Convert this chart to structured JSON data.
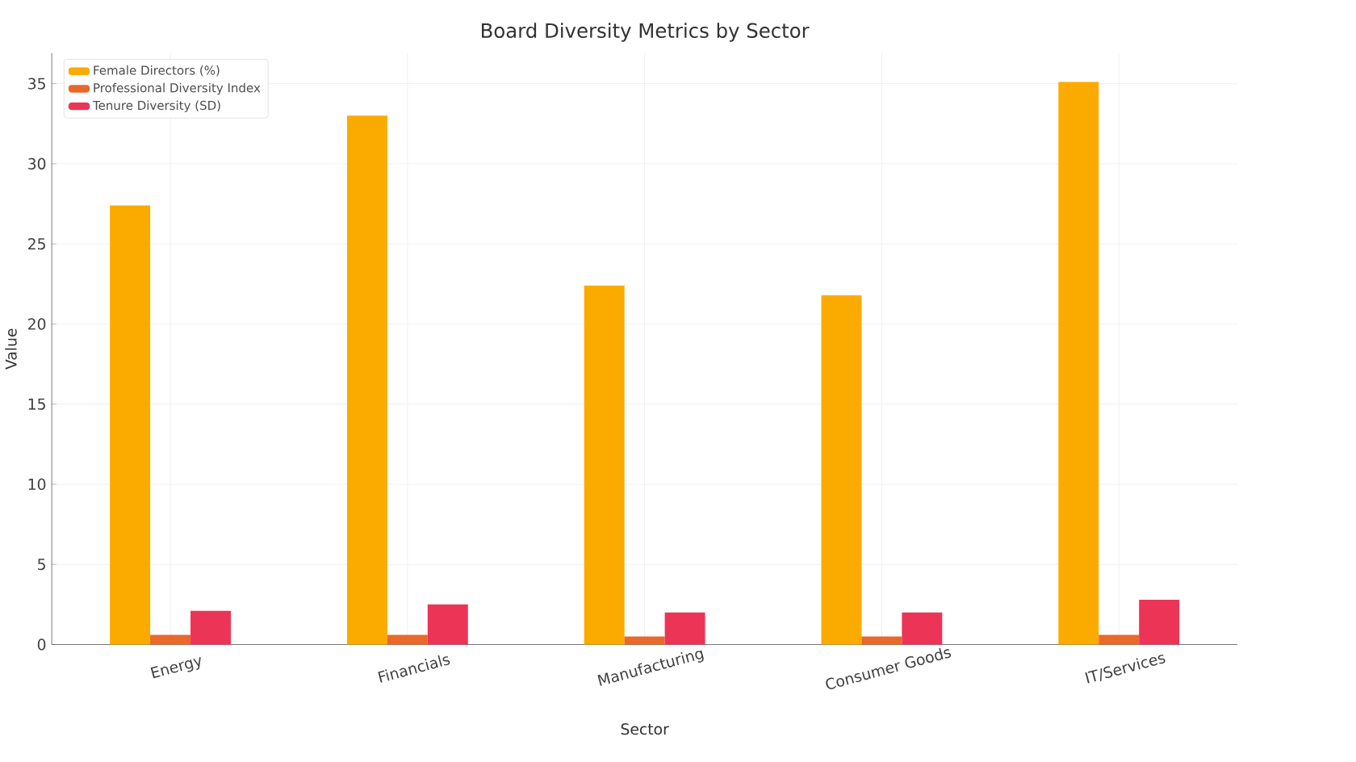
{
  "chart_data": {
    "type": "bar",
    "title": "Board Diversity Metrics by Sector",
    "xlabel": "Sector",
    "ylabel": "Value",
    "categories": [
      "Energy",
      "Financials",
      "Manufacturing",
      "Consumer Goods",
      "IT/Services"
    ],
    "series": [
      {
        "name": "Female Directors (%)",
        "color": "#fbab00",
        "values": [
          27.4,
          33.0,
          22.4,
          21.8,
          35.1
        ]
      },
      {
        "name": "Professional Diversity Index",
        "color": "#e8692a",
        "values": [
          0.6,
          0.6,
          0.5,
          0.5,
          0.6
        ]
      },
      {
        "name": "Tenure Diversity (SD)",
        "color": "#ec3456",
        "values": [
          2.1,
          2.5,
          2.0,
          2.0,
          2.8
        ]
      }
    ],
    "ylim": [
      0,
      36.9
    ],
    "yticks": [
      0,
      5,
      10,
      15,
      20,
      25,
      30,
      35
    ],
    "grid": true,
    "legend": "top left"
  }
}
